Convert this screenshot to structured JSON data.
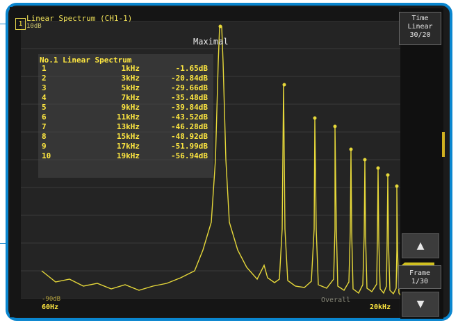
{
  "window": {
    "channel_number": "1",
    "title": "Linear Spectrum (CH1-1)",
    "scale": "10dB",
    "peak_mode_label": "Maximal"
  },
  "table": {
    "header": "No.1 Linear Spectrum",
    "rows": [
      {
        "no": "1",
        "freq": "1kHz",
        "value": "-1.65dB"
      },
      {
        "no": "2",
        "freq": "3kHz",
        "value": "-20.84dB"
      },
      {
        "no": "3",
        "freq": "5kHz",
        "value": "-29.66dB"
      },
      {
        "no": "4",
        "freq": "7kHz",
        "value": "-35.48dB"
      },
      {
        "no": "5",
        "freq": "9kHz",
        "value": "-39.84dB"
      },
      {
        "no": "6",
        "freq": "11kHz",
        "value": "-43.52dB"
      },
      {
        "no": "7",
        "freq": "13kHz",
        "value": "-46.28dB"
      },
      {
        "no": "8",
        "freq": "15kHz",
        "value": "-48.92dB"
      },
      {
        "no": "9",
        "freq": "17kHz",
        "value": "-51.99dB"
      },
      {
        "no": "10",
        "freq": "19kHz",
        "value": "-56.94dB"
      }
    ]
  },
  "axes": {
    "y_bottom_label": "-90dB",
    "x_left_label": "60Hz",
    "x_right_label": "20kHz",
    "overall_label": "Overall"
  },
  "side_panel": {
    "time_label": "Time",
    "linear_label": "Linear",
    "ratio_label": "30/20",
    "up_arrow": "▲",
    "down_arrow": "▼",
    "frame_label": "Frame",
    "frame_value": "1/30"
  },
  "colors": {
    "trace": "#e6d83a",
    "border": "#0a86cf",
    "label": "#ffe840"
  }
}
